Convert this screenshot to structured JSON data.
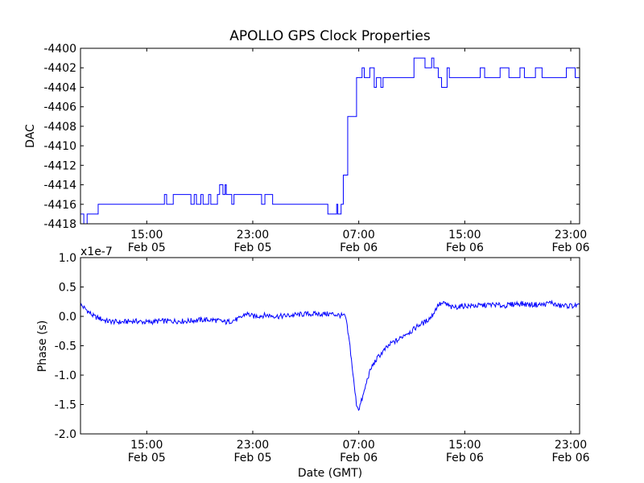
{
  "figure": {
    "title": "APOLLO GPS Clock Properties"
  },
  "colors": {
    "line": "#0000ff",
    "axis": "#000000",
    "background": "#ffffff"
  },
  "chart_data": [
    {
      "type": "line",
      "title": "APOLLO GPS Clock Properties",
      "xlabel": "",
      "ylabel": "DAC",
      "x_range": [
        "2013-02-05 10:00",
        "2013-02-06 23:40"
      ],
      "ylim": [
        -4418,
        -4400
      ],
      "grid": false,
      "y_ticks": [
        -4418,
        -4416,
        -4414,
        -4412,
        -4410,
        -4408,
        -4406,
        -4404,
        -4402,
        -4400
      ],
      "y_tick_labels": [
        "-4418",
        "-4416",
        "-4414",
        "-4412",
        "-4410",
        "-4408",
        "-4406",
        "-4404",
        "-4402",
        "-4400"
      ],
      "x_ticks": [
        {
          "x": "2013-02-05 15:00",
          "time": "15:00",
          "date": "Feb 05"
        },
        {
          "x": "2013-02-05 23:00",
          "time": "23:00",
          "date": "Feb 05"
        },
        {
          "x": "2013-02-06 07:00",
          "time": "07:00",
          "date": "Feb 06"
        },
        {
          "x": "2013-02-06 15:00",
          "time": "15:00",
          "date": "Feb 06"
        },
        {
          "x": "2013-02-06 23:00",
          "time": "23:00",
          "date": "Feb 06"
        }
      ],
      "series": [
        {
          "x": [
            "2013-02-05 10:00",
            "2013-02-05 10:15",
            "2013-02-05 10:30",
            "2013-02-05 11:10",
            "2013-02-05 11:20",
            "2013-02-05 14:00",
            "2013-02-05 16:20",
            "2013-02-05 16:30",
            "2013-02-05 17:00",
            "2013-02-05 18:10",
            "2013-02-05 18:20",
            "2013-02-05 18:35",
            "2013-02-05 18:45",
            "2013-02-05 19:05",
            "2013-02-05 19:15",
            "2013-02-05 19:40",
            "2013-02-05 19:50",
            "2013-02-05 20:20",
            "2013-02-05 20:30",
            "2013-02-05 20:45",
            "2013-02-05 20:55",
            "2013-02-05 21:00",
            "2013-02-05 21:15",
            "2013-02-05 21:25",
            "2013-02-05 21:35",
            "2013-02-05 22:00",
            "2013-02-05 23:30",
            "2013-02-05 23:40",
            "2013-02-05 23:55",
            "2013-02-06 00:05",
            "2013-02-06 00:30",
            "2013-02-06 00:40",
            "2013-02-06 01:50",
            "2013-02-06 04:30",
            "2013-02-06 04:40",
            "2013-02-06 05:20",
            "2013-02-06 05:25",
            "2013-02-06 05:40",
            "2013-02-06 05:50",
            "2013-02-06 06:10",
            "2013-02-06 06:50",
            "2013-02-06 07:15",
            "2013-02-06 07:25",
            "2013-02-06 07:50",
            "2013-02-06 08:10",
            "2013-02-06 08:20",
            "2013-02-06 08:40",
            "2013-02-06 08:50",
            "2013-02-06 11:00",
            "2013-02-06 11:10",
            "2013-02-06 11:50",
            "2013-02-06 12:00",
            "2013-02-06 12:30",
            "2013-02-06 12:40",
            "2013-02-06 13:00",
            "2013-02-06 13:15",
            "2013-02-06 13:40",
            "2013-02-06 13:50",
            "2013-02-06 16:10",
            "2013-02-06 16:30",
            "2013-02-06 17:40",
            "2013-02-06 18:20",
            "2013-02-06 19:10",
            "2013-02-06 19:30",
            "2013-02-06 20:20",
            "2013-02-06 20:50",
            "2013-02-06 22:40",
            "2013-02-06 22:50",
            "2013-02-06 23:20",
            "2013-02-06 23:40"
          ],
          "y": [
            -4417,
            -4418,
            -4417,
            -4417,
            -4416,
            -4416,
            -4415,
            -4416,
            -4415,
            -4415,
            -4416,
            -4415,
            -4416,
            -4415,
            -4416,
            -4415,
            -4416,
            -4415,
            -4414,
            -4415,
            -4414,
            -4415,
            -4415,
            -4416,
            -4415,
            -4415,
            -4415,
            -4416,
            -4415,
            -4415,
            -4416,
            -4416,
            -4416,
            -4416,
            -4417,
            -4416,
            -4417,
            -4416,
            -4413,
            -4407,
            -4403,
            -4402,
            -4403,
            -4402,
            -4404,
            -4403,
            -4404,
            -4403,
            -4403,
            -4401,
            -4401,
            -4402,
            -4401,
            -4402,
            -4403,
            -4404,
            -4402,
            -4403,
            -4402,
            -4403,
            -4402,
            -4403,
            -4402,
            -4403,
            -4402,
            -4403,
            -4402,
            -4402,
            -4403,
            -4403
          ]
        }
      ]
    },
    {
      "type": "line",
      "xlabel": "Date (GMT)",
      "ylabel": "Phase (s)",
      "y_scale_label": "x1e-7",
      "x_range": [
        "2013-02-05 10:00",
        "2013-02-06 23:40"
      ],
      "ylim": [
        -2.0,
        1.0
      ],
      "grid": false,
      "y_ticks": [
        -2.0,
        -1.5,
        -1.0,
        -0.5,
        0.0,
        0.5,
        1.0
      ],
      "y_tick_labels": [
        "-2.0",
        "-1.5",
        "-1.0",
        "-0.5",
        "0.0",
        "0.5",
        "1.0"
      ],
      "x_ticks": [
        {
          "x": "2013-02-05 15:00",
          "time": "15:00",
          "date": "Feb 05"
        },
        {
          "x": "2013-02-05 23:00",
          "time": "23:00",
          "date": "Feb 05"
        },
        {
          "x": "2013-02-06 07:00",
          "time": "07:00",
          "date": "Feb 06"
        },
        {
          "x": "2013-02-06 15:00",
          "time": "15:00",
          "date": "Feb 06"
        },
        {
          "x": "2013-02-06 23:00",
          "time": "23:00",
          "date": "Feb 06"
        }
      ],
      "series": [
        {
          "x": [
            "2013-02-05 10:00",
            "2013-02-05 10:30",
            "2013-02-05 11:00",
            "2013-02-05 12:00",
            "2013-02-05 13:00",
            "2013-02-05 14:00",
            "2013-02-05 15:00",
            "2013-02-05 16:00",
            "2013-02-05 17:00",
            "2013-02-05 18:00",
            "2013-02-05 19:00",
            "2013-02-05 20:00",
            "2013-02-05 21:00",
            "2013-02-05 22:00",
            "2013-02-05 22:30",
            "2013-02-05 23:00",
            "2013-02-06 00:00",
            "2013-02-06 01:00",
            "2013-02-06 02:00",
            "2013-02-06 03:00",
            "2013-02-06 04:00",
            "2013-02-06 05:00",
            "2013-02-06 05:30",
            "2013-02-06 06:00",
            "2013-02-06 06:20",
            "2013-02-06 06:40",
            "2013-02-06 06:50",
            "2013-02-06 07:00",
            "2013-02-06 07:20",
            "2013-02-06 07:40",
            "2013-02-06 08:00",
            "2013-02-06 08:30",
            "2013-02-06 09:00",
            "2013-02-06 09:30",
            "2013-02-06 10:00",
            "2013-02-06 10:30",
            "2013-02-06 11:00",
            "2013-02-06 11:30",
            "2013-02-06 12:00",
            "2013-02-06 12:30",
            "2013-02-06 13:00",
            "2013-02-06 13:30",
            "2013-02-06 14:00",
            "2013-02-06 15:00",
            "2013-02-06 16:00",
            "2013-02-06 17:00",
            "2013-02-06 18:00",
            "2013-02-06 19:00",
            "2013-02-06 20:00",
            "2013-02-06 21:00",
            "2013-02-06 21:30",
            "2013-02-06 22:00",
            "2013-02-06 23:00",
            "2013-02-06 23:40"
          ],
          "y": [
            0.2,
            0.1,
            0.0,
            -0.08,
            -0.1,
            -0.08,
            -0.1,
            -0.08,
            -0.08,
            -0.08,
            -0.06,
            -0.06,
            -0.1,
            -0.04,
            0.05,
            0.0,
            0.02,
            0.0,
            0.02,
            0.04,
            0.04,
            0.04,
            0.02,
            0.0,
            -0.5,
            -1.2,
            -1.5,
            -1.58,
            -1.35,
            -1.05,
            -0.85,
            -0.68,
            -0.56,
            -0.45,
            -0.4,
            -0.3,
            -0.25,
            -0.15,
            -0.1,
            0.0,
            0.2,
            0.22,
            0.15,
            0.18,
            0.18,
            0.2,
            0.18,
            0.22,
            0.2,
            0.2,
            0.24,
            0.18,
            0.18,
            0.18
          ]
        }
      ]
    }
  ]
}
